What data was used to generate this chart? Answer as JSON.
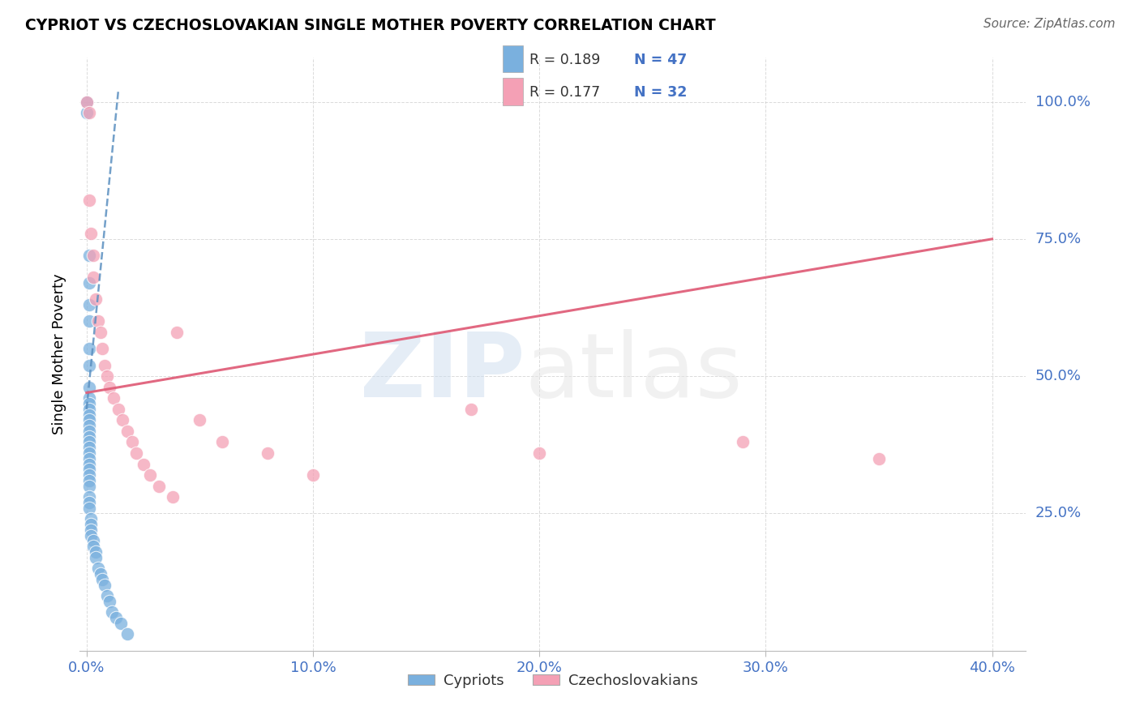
{
  "title": "CYPRIOT VS CZECHOSLOVAKIAN SINGLE MOTHER POVERTY CORRELATION CHART",
  "source": "Source: ZipAtlas.com",
  "ylabel": "Single Mother Poverty",
  "xlim": [
    0.0,
    0.4
  ],
  "ylim": [
    0.0,
    1.05
  ],
  "xtick_vals": [
    0.0,
    0.1,
    0.2,
    0.3,
    0.4
  ],
  "ytick_vals": [
    0.25,
    0.5,
    0.75,
    1.0
  ],
  "legend_r1": "R = 0.189",
  "legend_n1": "N = 47",
  "legend_r2": "R = 0.177",
  "legend_n2": "N = 32",
  "color_blue": "#7ab0de",
  "color_pink": "#f4a0b5",
  "color_blue_line": "#5b8fc0",
  "color_pink_line": "#e0607a",
  "color_blue_dark": "#4472c4",
  "color_text_dark": "#333333",
  "color_grid": "#cccccc",
  "cypriot_x": [
    0.0,
    0.0,
    0.001,
    0.001,
    0.001,
    0.001,
    0.001,
    0.001,
    0.001,
    0.001,
    0.001,
    0.001,
    0.001,
    0.001,
    0.001,
    0.001,
    0.001,
    0.001,
    0.001,
    0.001,
    0.001,
    0.001,
    0.001,
    0.001,
    0.001,
    0.001,
    0.001,
    0.001,
    0.001,
    0.002,
    0.002,
    0.002,
    0.002,
    0.003,
    0.003,
    0.004,
    0.004,
    0.005,
    0.006,
    0.007,
    0.008,
    0.009,
    0.01,
    0.011,
    0.013,
    0.015,
    0.018
  ],
  "cypriot_y": [
    1.0,
    0.98,
    0.72,
    0.67,
    0.63,
    0.6,
    0.55,
    0.52,
    0.48,
    0.46,
    0.45,
    0.44,
    0.43,
    0.42,
    0.41,
    0.4,
    0.39,
    0.38,
    0.37,
    0.36,
    0.35,
    0.34,
    0.33,
    0.32,
    0.31,
    0.3,
    0.28,
    0.27,
    0.26,
    0.24,
    0.23,
    0.22,
    0.21,
    0.2,
    0.19,
    0.18,
    0.17,
    0.15,
    0.14,
    0.13,
    0.12,
    0.1,
    0.09,
    0.07,
    0.06,
    0.05,
    0.03
  ],
  "czech_x": [
    0.0,
    0.001,
    0.001,
    0.002,
    0.003,
    0.003,
    0.004,
    0.005,
    0.006,
    0.007,
    0.008,
    0.009,
    0.01,
    0.012,
    0.014,
    0.016,
    0.018,
    0.02,
    0.022,
    0.025,
    0.028,
    0.032,
    0.038,
    0.04,
    0.05,
    0.06,
    0.08,
    0.1,
    0.17,
    0.2,
    0.29,
    0.35
  ],
  "czech_y": [
    1.0,
    0.98,
    0.82,
    0.76,
    0.72,
    0.68,
    0.64,
    0.6,
    0.58,
    0.55,
    0.52,
    0.5,
    0.48,
    0.46,
    0.44,
    0.42,
    0.4,
    0.38,
    0.36,
    0.34,
    0.32,
    0.3,
    0.28,
    0.58,
    0.42,
    0.38,
    0.36,
    0.32,
    0.44,
    0.36,
    0.38,
    0.35
  ],
  "blue_line_x": [
    0.0,
    0.014
  ],
  "blue_line_y": [
    0.44,
    1.02
  ],
  "pink_line_x": [
    0.0,
    0.4
  ],
  "pink_line_y": [
    0.47,
    0.75
  ]
}
